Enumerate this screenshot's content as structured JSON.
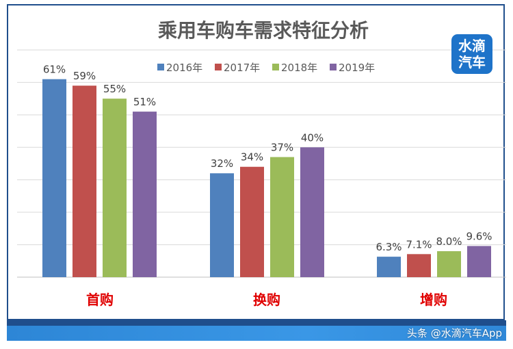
{
  "chart_data": {
    "type": "bar",
    "title": "乘用车购车需求特征分析",
    "categories": [
      "首购",
      "换购",
      "增购"
    ],
    "series": [
      {
        "name": "2016年",
        "values": [
          61,
          32,
          6.3
        ],
        "labels": [
          "61%",
          "32%",
          "6.3%"
        ],
        "color": "#4f81bd"
      },
      {
        "name": "2017年",
        "values": [
          59,
          34,
          7.1
        ],
        "labels": [
          "59%",
          "34%",
          "7.1%"
        ],
        "color": "#c0504d"
      },
      {
        "name": "2018年",
        "values": [
          55,
          37,
          8.0
        ],
        "labels": [
          "55%",
          "37%",
          "8.0%"
        ],
        "color": "#9bbb59"
      },
      {
        "name": "2019年",
        "values": [
          51,
          40,
          9.6
        ],
        "labels": [
          "51%",
          "40%",
          "9.6%"
        ],
        "color": "#8064a2"
      }
    ],
    "ylim": [
      0,
      70
    ],
    "y_gridlines": [
      0,
      10,
      20,
      30,
      40,
      50,
      60,
      70
    ],
    "category_label_color": "#e00000",
    "legend_position": "top",
    "grid": true
  },
  "logo": {
    "line1": "水滴",
    "line2": "汽车"
  },
  "watermark": "头条 @水滴汽车App"
}
